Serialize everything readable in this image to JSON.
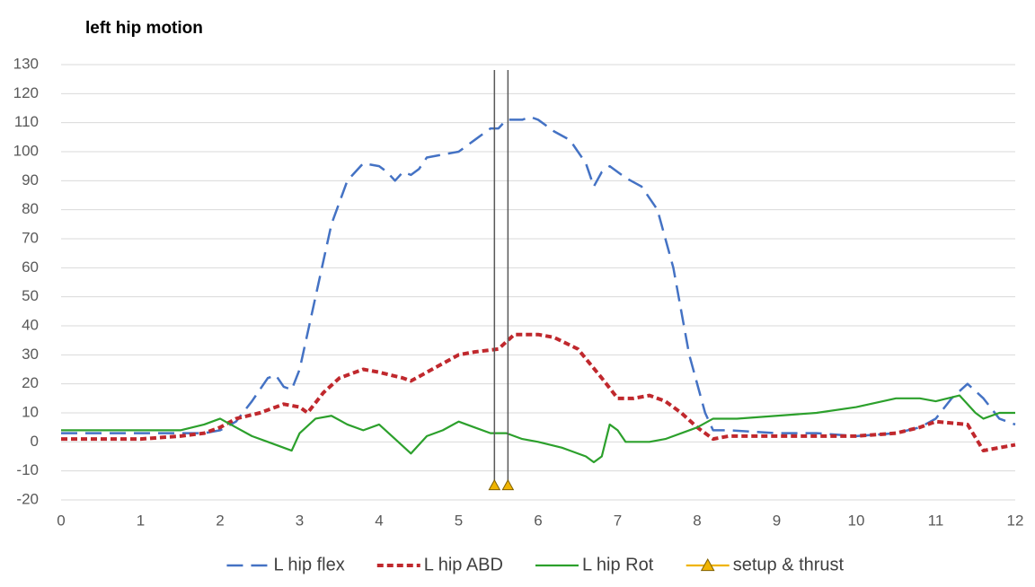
{
  "chart_data": {
    "type": "line",
    "title": "left hip motion",
    "xlim": [
      0,
      12
    ],
    "xticks": [
      0,
      1,
      2,
      3,
      4,
      5,
      6,
      7,
      8,
      9,
      10,
      11,
      12
    ],
    "ylim": [
      -20,
      130
    ],
    "yticks": [
      -20,
      -10,
      0,
      10,
      20,
      30,
      40,
      50,
      60,
      70,
      80,
      90,
      100,
      110,
      120,
      130
    ],
    "grid": true,
    "legend": "bottom",
    "series": [
      {
        "name": "L hip flex",
        "color": "#4472c4",
        "dash": "dashed",
        "x": [
          0,
          0.5,
          1,
          1.5,
          1.8,
          2,
          2.2,
          2.4,
          2.6,
          2.7,
          2.8,
          2.9,
          3,
          3.2,
          3.4,
          3.6,
          3.8,
          4,
          4.1,
          4.2,
          4.3,
          4.4,
          4.5,
          4.6,
          4.8,
          5,
          5.2,
          5.4,
          5.5,
          5.6,
          5.8,
          5.9,
          6,
          6.2,
          6.4,
          6.6,
          6.7,
          6.8,
          6.9,
          7,
          7.1,
          7.3,
          7.5,
          7.7,
          7.9,
          8.1,
          8.2,
          8.4,
          9,
          9.5,
          10,
          10.5,
          10.8,
          11,
          11.2,
          11.4,
          11.6,
          11.8,
          12
        ],
        "values": [
          3,
          3,
          3,
          3,
          3,
          4,
          7,
          14,
          22,
          23,
          19,
          18,
          25,
          50,
          75,
          90,
          96,
          95,
          93,
          90,
          93,
          92,
          94,
          98,
          99,
          100,
          104,
          108,
          108,
          111,
          111,
          112,
          111,
          107,
          104,
          96,
          88,
          93,
          95,
          93,
          91,
          88,
          80,
          60,
          30,
          10,
          4,
          4,
          3,
          3,
          2,
          3,
          5,
          8,
          15,
          20,
          15,
          8,
          6
        ]
      },
      {
        "name": "L hip ABD",
        "color": "#c0282d",
        "dash": "dotted",
        "x": [
          0,
          1,
          1.5,
          1.8,
          2,
          2.2,
          2.5,
          2.8,
          3,
          3.1,
          3.3,
          3.5,
          3.8,
          4,
          4.3,
          4.4,
          4.6,
          4.8,
          5,
          5.2,
          5.5,
          5.7,
          6,
          6.2,
          6.5,
          6.8,
          7,
          7.2,
          7.4,
          7.6,
          7.8,
          8,
          8.2,
          8.4,
          9,
          10,
          10.5,
          10.8,
          11,
          11.4,
          11.6,
          11.8,
          12
        ],
        "values": [
          1,
          1,
          2,
          3,
          5,
          8,
          10,
          13,
          12,
          10,
          17,
          22,
          25,
          24,
          22,
          21,
          24,
          27,
          30,
          31,
          32,
          37,
          37,
          36,
          32,
          22,
          15,
          15,
          16,
          14,
          10,
          5,
          1,
          2,
          2,
          2,
          3,
          5,
          7,
          6,
          -3,
          -2,
          -1
        ]
      },
      {
        "name": "L hip Rot",
        "color": "#2ca02c",
        "dash": "solid",
        "x": [
          0,
          0.5,
          1,
          1.5,
          1.8,
          2,
          2.2,
          2.4,
          2.6,
          2.8,
          2.9,
          3,
          3.2,
          3.4,
          3.6,
          3.8,
          4,
          4.2,
          4.4,
          4.6,
          4.8,
          5,
          5.2,
          5.4,
          5.6,
          5.8,
          6,
          6.3,
          6.6,
          6.7,
          6.8,
          6.9,
          7,
          7.1,
          7.4,
          7.6,
          8,
          8.2,
          8.5,
          9,
          9.5,
          10,
          10.5,
          10.8,
          11,
          11.3,
          11.5,
          11.6,
          11.8,
          12
        ],
        "values": [
          4,
          4,
          4,
          4,
          6,
          8,
          5,
          2,
          0,
          -2,
          -3,
          3,
          8,
          9,
          6,
          4,
          6,
          1,
          -4,
          2,
          4,
          7,
          5,
          3,
          3,
          1,
          0,
          -2,
          -5,
          -7,
          -5,
          6,
          4,
          0,
          0,
          1,
          5,
          8,
          8,
          9,
          10,
          12,
          15,
          15,
          14,
          16,
          10,
          8,
          10,
          10
        ]
      },
      {
        "name": "setup & thrust",
        "color": "#f0b400",
        "dash": "solid",
        "marker": "triangle",
        "droplines": true,
        "x": [
          5.45,
          5.62
        ],
        "values": [
          -15,
          -15
        ]
      }
    ]
  }
}
